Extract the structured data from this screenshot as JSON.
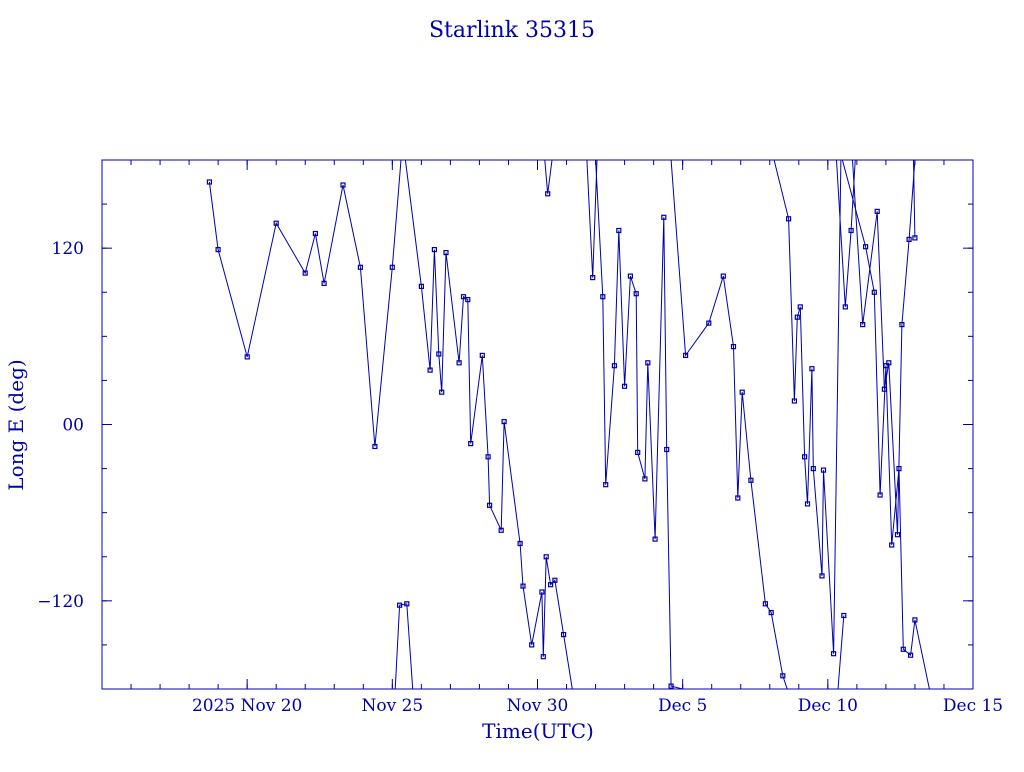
{
  "chart_data": {
    "type": "scatter",
    "title": "Starlink 35315",
    "xlabel": "Time(UTC)",
    "ylabel": "Long E (deg)",
    "x_units": "days since 2025-11-15 00:00 UTC",
    "xlim": [
      0,
      30
    ],
    "ylim": [
      -180,
      180
    ],
    "x_tick_labels": [
      {
        "x": 5,
        "label": "2025 Nov 20"
      },
      {
        "x": 10,
        "label": "Nov 25"
      },
      {
        "x": 15,
        "label": "Nov 30"
      },
      {
        "x": 20,
        "label": "Dec  5"
      },
      {
        "x": 25,
        "label": "Dec 10"
      },
      {
        "x": 30,
        "label": "Dec 15"
      }
    ],
    "y_tick_labels": [
      {
        "y": 120,
        "label": "120"
      },
      {
        "y": 0,
        "label": "00"
      },
      {
        "y": -120,
        "label": "−120"
      }
    ],
    "colors": {
      "axis": "#0000aa",
      "series": "#0000aa"
    },
    "series": [
      {
        "name": "Long E",
        "points": [
          [
            3.7,
            165
          ],
          [
            4.0,
            119
          ],
          [
            5.0,
            46
          ],
          [
            6.0,
            137
          ],
          [
            7.0,
            103
          ],
          [
            7.35,
            130
          ],
          [
            7.65,
            96
          ],
          [
            8.3,
            163
          ],
          [
            8.9,
            107
          ],
          [
            9.4,
            -15
          ],
          [
            10.0,
            107
          ],
          [
            10.3,
            180
          ]
        ]
      },
      {
        "name": "Long E",
        "points": [
          [
            10.1,
            -180
          ],
          [
            10.25,
            -123
          ],
          [
            10.5,
            -122
          ],
          [
            10.7,
            -180
          ]
        ]
      },
      {
        "name": "Long E",
        "points": [
          [
            10.45,
            180
          ],
          [
            11.0,
            94
          ],
          [
            11.3,
            37
          ],
          [
            11.45,
            119
          ],
          [
            11.6,
            48
          ],
          [
            11.7,
            22
          ],
          [
            11.85,
            117
          ],
          [
            12.3,
            42
          ],
          [
            12.45,
            87
          ],
          [
            12.6,
            85
          ],
          [
            12.7,
            -13
          ],
          [
            13.1,
            47
          ],
          [
            13.3,
            -22
          ],
          [
            13.35,
            -55
          ],
          [
            13.75,
            -72
          ],
          [
            13.85,
            2
          ],
          [
            14.4,
            -81
          ],
          [
            14.5,
            -110
          ],
          [
            14.8,
            -150
          ],
          [
            15.15,
            -114
          ],
          [
            15.2,
            -158
          ],
          [
            15.3,
            -90
          ],
          [
            15.45,
            -109
          ],
          [
            15.6,
            -106
          ],
          [
            15.9,
            -143
          ],
          [
            16.2,
            -180
          ]
        ]
      },
      {
        "name": "Long E",
        "points": [
          [
            15.2,
            -180
          ],
          [
            15.3,
            -180
          ]
        ]
      },
      {
        "name": "Long E",
        "points": [
          [
            15.25,
            180
          ],
          [
            15.35,
            157
          ],
          [
            15.5,
            180
          ]
        ]
      },
      {
        "name": "Long E",
        "points": [
          [
            16.7,
            180
          ],
          [
            16.9,
            100
          ],
          [
            17.05,
            180
          ]
        ]
      },
      {
        "name": "Long E",
        "points": [
          [
            17.0,
            180
          ],
          [
            17.25,
            87
          ],
          [
            17.35,
            -41
          ],
          [
            17.65,
            40
          ],
          [
            17.8,
            132
          ],
          [
            18.0,
            26
          ],
          [
            18.2,
            101
          ],
          [
            18.4,
            89
          ],
          [
            18.45,
            -19
          ],
          [
            18.7,
            -37
          ],
          [
            18.8,
            42
          ],
          [
            19.05,
            -78
          ],
          [
            19.35,
            141
          ],
          [
            19.45,
            -17
          ],
          [
            19.6,
            -178
          ],
          [
            20.0,
            -180
          ]
        ]
      },
      {
        "name": "Long E",
        "points": [
          [
            19.3,
            180
          ],
          [
            19.6,
            180
          ],
          [
            20.1,
            47
          ],
          [
            20.9,
            69
          ],
          [
            21.4,
            101
          ],
          [
            21.75,
            53
          ],
          [
            21.9,
            -50
          ],
          [
            22.05,
            22
          ],
          [
            22.35,
            -38
          ],
          [
            22.85,
            -122
          ],
          [
            23.05,
            -128
          ],
          [
            23.45,
            -171
          ],
          [
            23.6,
            -180
          ]
        ]
      },
      {
        "name": "Long E",
        "points": [
          [
            23.15,
            180
          ],
          [
            23.65,
            140
          ],
          [
            23.85,
            16
          ],
          [
            23.95,
            73
          ],
          [
            24.05,
            80
          ],
          [
            24.2,
            -22
          ],
          [
            24.3,
            -54
          ],
          [
            24.45,
            38
          ],
          [
            24.5,
            -30
          ],
          [
            24.8,
            -103
          ],
          [
            24.85,
            -31
          ],
          [
            25.2,
            -156
          ],
          [
            25.45,
            180
          ]
        ]
      },
      {
        "name": "Long E",
        "points": [
          [
            25.3,
            180
          ],
          [
            25.6,
            80
          ],
          [
            25.8,
            132
          ],
          [
            25.95,
            182
          ]
        ]
      },
      {
        "name": "Long E",
        "points": [
          [
            25.35,
            -180
          ],
          [
            25.55,
            -130
          ]
        ]
      },
      {
        "name": "Long E",
        "points": [
          [
            25.5,
            180
          ],
          [
            26.3,
            121
          ],
          [
            26.6,
            90
          ],
          [
            26.8,
            -48
          ],
          [
            27.0,
            40
          ],
          [
            27.2,
            -82
          ],
          [
            27.45,
            -30
          ],
          [
            27.6,
            -153
          ],
          [
            27.85,
            -157
          ],
          [
            28.0,
            -133
          ],
          [
            28.5,
            -180
          ]
        ]
      },
      {
        "name": "Long E",
        "points": [
          [
            25.85,
            180
          ],
          [
            26.2,
            68
          ],
          [
            26.7,
            145
          ],
          [
            26.95,
            24
          ],
          [
            27.1,
            42
          ],
          [
            27.4,
            -75
          ],
          [
            27.55,
            68
          ],
          [
            27.8,
            126
          ],
          [
            28.0,
            180
          ]
        ]
      },
      {
        "name": "Long E",
        "points": [
          [
            27.95,
            180
          ],
          [
            28.0,
            127
          ]
        ]
      }
    ]
  }
}
